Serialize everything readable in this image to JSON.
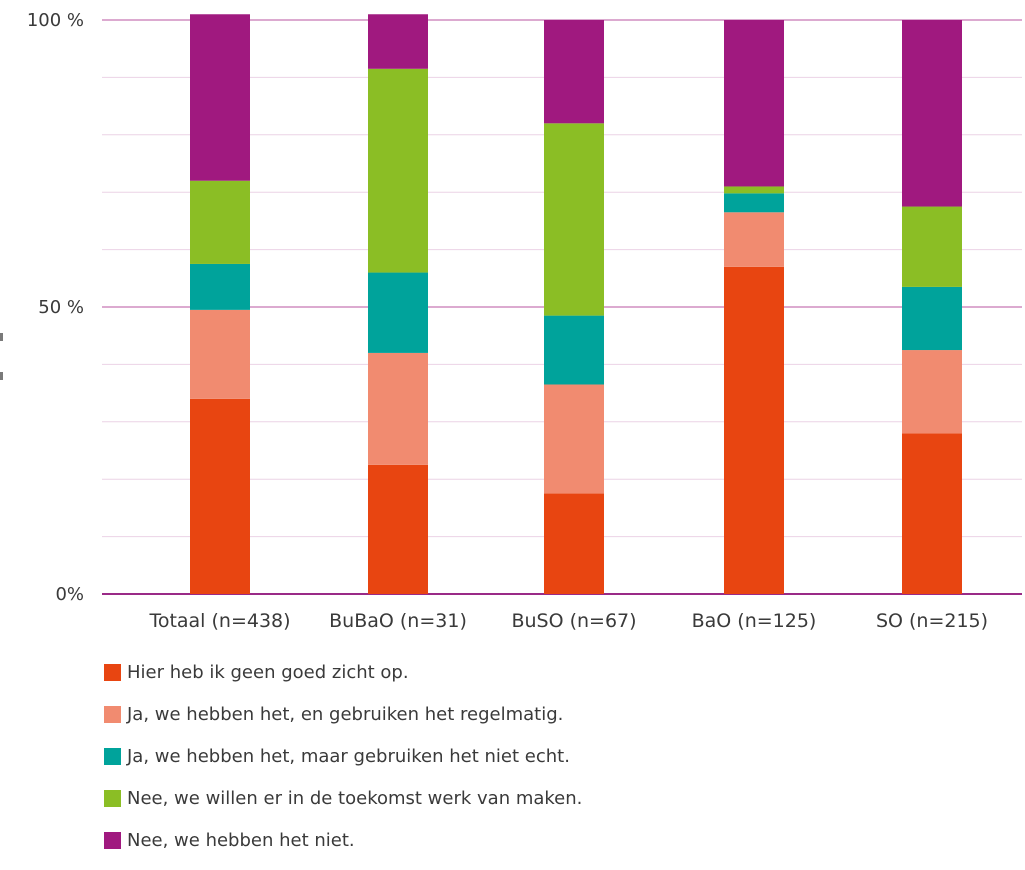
{
  "chart_data": {
    "type": "bar",
    "stacked": true,
    "categories": [
      "Totaal (n=438)",
      "BuBaO (n=31)",
      "BuSO (n=67)",
      "BaO (n=125)",
      "SO (n=215)"
    ],
    "series": [
      {
        "name": "Hier heb ik geen goed zicht op.",
        "color": "#E84511",
        "values": [
          34,
          22.5,
          17.5,
          57,
          28
        ]
      },
      {
        "name": "Ja, we hebben het, en gebruiken het regelmatig.",
        "color": "#F18B70",
        "values": [
          15.5,
          19.5,
          19,
          9.5,
          14.5
        ]
      },
      {
        "name": "Ja, we hebben het, maar gebruiken het niet echt.",
        "color": "#00A39B",
        "values": [
          8,
          14,
          12,
          3.3,
          11
        ]
      },
      {
        "name": "Nee, we willen er in de toekomst werk van maken.",
        "color": "#8BBE25",
        "values": [
          14.5,
          35.5,
          33.5,
          1.2,
          14
        ]
      },
      {
        "name": "Nee, we hebben het niet.",
        "color": "#A0197F",
        "values": [
          29,
          9.5,
          18,
          29,
          32.5
        ]
      }
    ],
    "y_ticks": [
      {
        "value": 0,
        "label": "0%"
      },
      {
        "value": 50,
        "label": "50 %"
      },
      {
        "value": 100,
        "label": "100 %"
      }
    ],
    "ylim": [
      0,
      100
    ],
    "grid": true,
    "legend_position": "bottom-left"
  }
}
